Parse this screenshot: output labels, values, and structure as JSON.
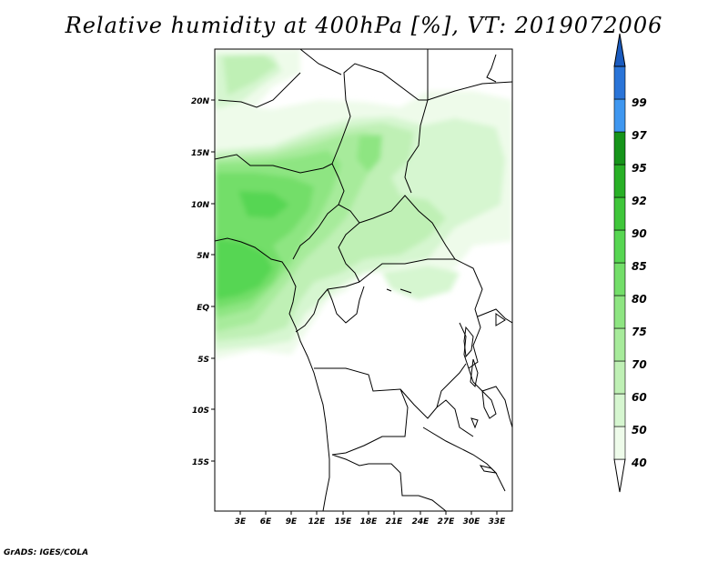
{
  "title": "Relative humidity at 400hPa [%], VT: 2019072006",
  "credit": "GrADS: IGES/COLA",
  "map": {
    "lat_ticks": [
      "20N",
      "15N",
      "10N",
      "5N",
      "EQ",
      "5S",
      "10S",
      "15S"
    ],
    "lon_ticks": [
      "3E",
      "6E",
      "9E",
      "12E",
      "15E",
      "18E",
      "21E",
      "24E",
      "27E",
      "30E",
      "33E"
    ]
  },
  "colorbar": {
    "levels": [
      "40",
      "50",
      "60",
      "70",
      "75",
      "80",
      "85",
      "90",
      "92",
      "95",
      "97",
      "99"
    ],
    "colors": [
      "#eefbea",
      "#d6f6d0",
      "#bff0b5",
      "#a7eb9b",
      "#8ee582",
      "#73de69",
      "#57d652",
      "#3fc63a",
      "#28b026",
      "#16941a",
      "#3f97f0",
      "#2a74d8",
      "#1a5bbf"
    ]
  }
}
